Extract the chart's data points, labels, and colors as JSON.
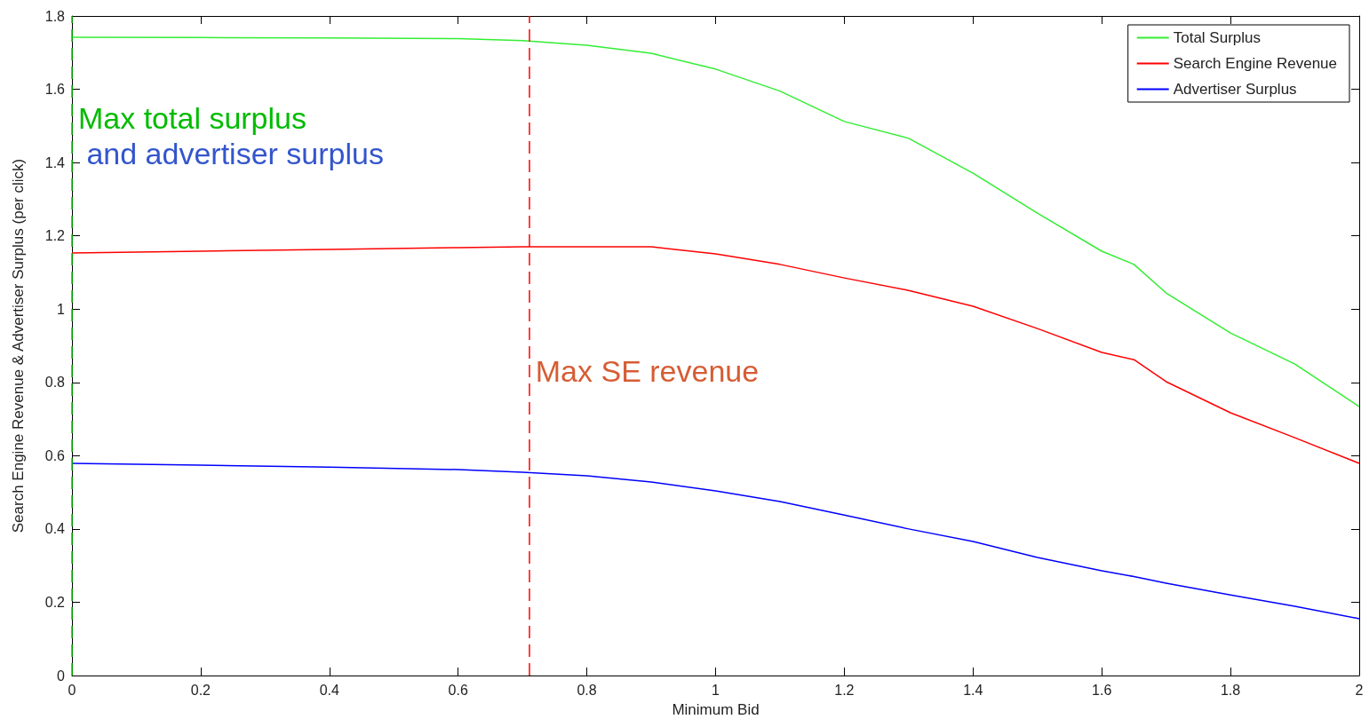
{
  "chart_data": {
    "type": "line",
    "xlabel": "Minimum Bid",
    "ylabel": "Search Engine Revenue & Advertiser Surplus (per click)",
    "x": [
      0,
      0.2,
      0.4,
      0.6,
      0.7,
      0.8,
      0.9,
      1.0,
      1.1,
      1.2,
      1.3,
      1.4,
      1.5,
      1.6,
      1.65,
      1.7,
      1.8,
      1.9,
      2.0
    ],
    "series": [
      {
        "name": "Total Surplus",
        "color": "#33ee33",
        "values": [
          1.742,
          1.741,
          1.74,
          1.738,
          1.733,
          1.72,
          1.698,
          1.655,
          1.595,
          1.512,
          1.466,
          1.371,
          1.262,
          1.158,
          1.122,
          1.044,
          0.935,
          0.85,
          0.734
        ]
      },
      {
        "name": "Search Engine Revenue",
        "color": "#ff0000",
        "values": [
          1.153,
          1.158,
          1.163,
          1.168,
          1.17,
          1.17,
          1.17,
          1.151,
          1.122,
          1.085,
          1.051,
          1.008,
          0.947,
          0.882,
          0.862,
          0.802,
          0.717,
          0.649,
          0.579
        ]
      },
      {
        "name": "Advertiser Surplus",
        "color": "#0000ff",
        "values": [
          0.579,
          0.574,
          0.569,
          0.562,
          0.555,
          0.545,
          0.528,
          0.504,
          0.475,
          0.438,
          0.4,
          0.366,
          0.322,
          0.286,
          0.27,
          0.252,
          0.22,
          0.189,
          0.155
        ]
      }
    ],
    "ref_lines": [
      {
        "axis": "x",
        "value": 0,
        "color": "#00cc00",
        "line_style": "dashed"
      },
      {
        "axis": "x",
        "value": 0.714,
        "color": "#ff0000",
        "line_style": "dashed"
      }
    ],
    "annotations": [
      "Max total surplus",
      " and advertiser surplus",
      {
        "text": "Max SE revenue",
        "x": 0.714,
        "y": 0.83
      }
    ],
    "xlim": [
      0,
      2
    ],
    "ylim": [
      0,
      1.8
    ],
    "xticks": [
      0,
      0.2,
      0.4,
      0.6,
      0.8,
      1,
      1.2,
      1.4,
      1.6,
      1.8,
      2
    ],
    "yticks": [
      0,
      0.2,
      0.4,
      0.6,
      0.8,
      1,
      1.2,
      1.4,
      1.6,
      1.8
    ],
    "grid": false,
    "legend": "top right",
    "marker": "none",
    "line_style": "solid"
  }
}
